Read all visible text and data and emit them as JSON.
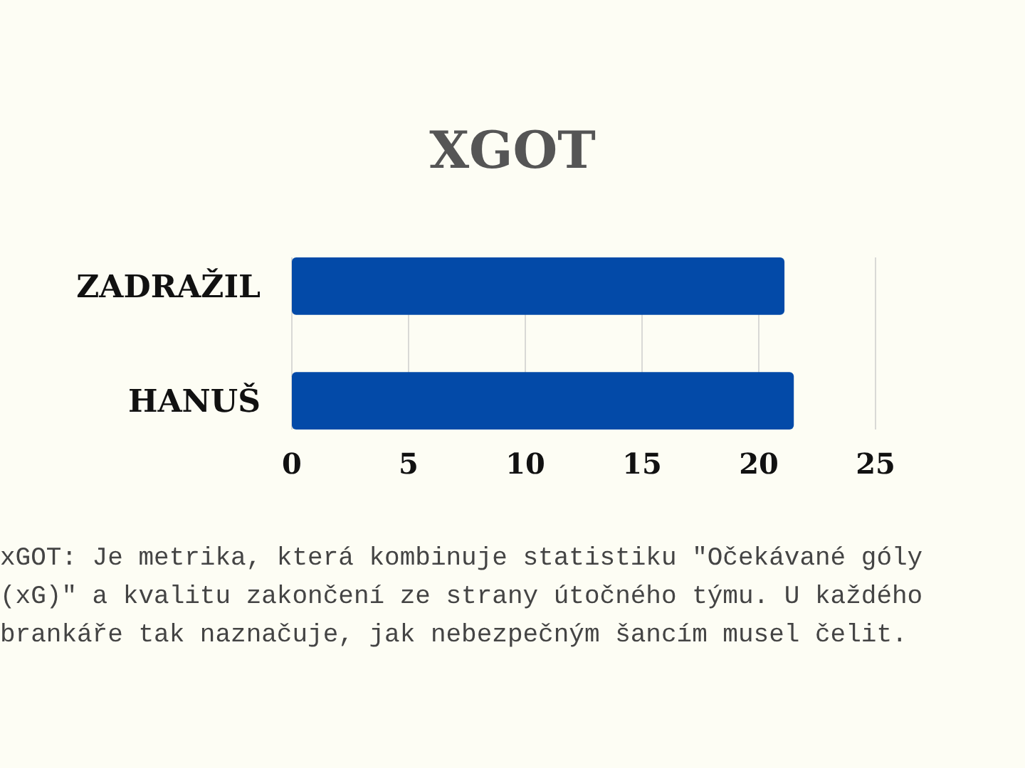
{
  "chart_data": {
    "type": "bar",
    "orientation": "horizontal",
    "title": "XGOT",
    "categories": [
      "ZADRAŽIL",
      "HANUŠ"
    ],
    "values": [
      21.1,
      21.5
    ],
    "color": "#034aa8",
    "xlim": [
      0,
      25
    ],
    "xticks": [
      0,
      5,
      10,
      15,
      20,
      25
    ],
    "grid": "x",
    "annotations": [
      "xGOT: Je metrika, která kombinuje statistiku \"Očekávané góly (xG)\" a kvalitu zakončení ze strany útočného týmu. U každého brankáře tak naznačuje, jak nebezpečným šancím musel čelit."
    ]
  }
}
